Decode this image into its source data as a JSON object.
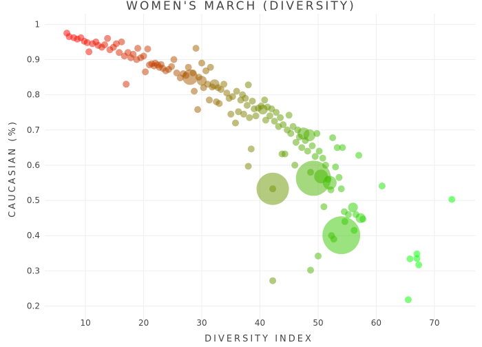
{
  "chart_data": {
    "type": "scatter",
    "title": "WOMEN'S MARCH (DIVERSITY)",
    "xlabel": "DIVERSITY INDEX",
    "ylabel": "CAUCASIAN (%)",
    "xlim": [
      3,
      77
    ],
    "ylim": [
      0.16,
      1.03
    ],
    "xticks": [
      10,
      20,
      30,
      40,
      50,
      60,
      70
    ],
    "yticks": [
      0.2,
      0.3,
      0.4,
      0.5,
      0.6,
      0.7,
      0.8,
      0.9,
      1
    ],
    "ytick_labels": [
      "0.2",
      "0.3",
      "0.4",
      "0.5",
      "0.6",
      "0.7",
      "0.8",
      "0.9",
      "1"
    ],
    "grid": true,
    "legend": "none",
    "color_scale": {
      "low": "#ff0000",
      "high": "#00ff00",
      "note": "marker color runs from red (low diversity) to green (high diversity)"
    },
    "size_note": "marker area is proportional to march size",
    "points": [
      {
        "x": 6.8,
        "y": 0.975,
        "s": 1
      },
      {
        "x": 7.2,
        "y": 0.965,
        "s": 1
      },
      {
        "x": 8.0,
        "y": 0.962,
        "s": 1
      },
      {
        "x": 8.6,
        "y": 0.958,
        "s": 1
      },
      {
        "x": 9.2,
        "y": 0.962,
        "s": 1
      },
      {
        "x": 9.8,
        "y": 0.952,
        "s": 1
      },
      {
        "x": 10.3,
        "y": 0.948,
        "s": 1
      },
      {
        "x": 10.6,
        "y": 0.922,
        "s": 1
      },
      {
        "x": 11.2,
        "y": 0.945,
        "s": 1
      },
      {
        "x": 11.8,
        "y": 0.95,
        "s": 1
      },
      {
        "x": 12.2,
        "y": 0.94,
        "s": 1
      },
      {
        "x": 12.8,
        "y": 0.935,
        "s": 1
      },
      {
        "x": 13.3,
        "y": 0.942,
        "s": 1
      },
      {
        "x": 13.8,
        "y": 0.96,
        "s": 1
      },
      {
        "x": 14.2,
        "y": 0.928,
        "s": 1
      },
      {
        "x": 14.8,
        "y": 0.935,
        "s": 1
      },
      {
        "x": 15.3,
        "y": 0.945,
        "s": 1
      },
      {
        "x": 15.8,
        "y": 0.92,
        "s": 1
      },
      {
        "x": 16.2,
        "y": 0.95,
        "s": 1
      },
      {
        "x": 16.7,
        "y": 0.91,
        "s": 1
      },
      {
        "x": 17.0,
        "y": 0.83,
        "s": 1
      },
      {
        "x": 17.3,
        "y": 0.92,
        "s": 1
      },
      {
        "x": 17.8,
        "y": 0.905,
        "s": 1
      },
      {
        "x": 18.2,
        "y": 0.915,
        "s": 1
      },
      {
        "x": 18.8,
        "y": 0.9,
        "s": 1
      },
      {
        "x": 19.0,
        "y": 0.932,
        "s": 1
      },
      {
        "x": 19.5,
        "y": 0.905,
        "s": 1
      },
      {
        "x": 20.0,
        "y": 0.91,
        "s": 1
      },
      {
        "x": 20.3,
        "y": 0.865,
        "s": 1
      },
      {
        "x": 20.7,
        "y": 0.93,
        "s": 1
      },
      {
        "x": 21.0,
        "y": 0.885,
        "s": 1
      },
      {
        "x": 21.4,
        "y": 0.888,
        "s": 1
      },
      {
        "x": 21.8,
        "y": 0.882,
        "s": 1
      },
      {
        "x": 22.0,
        "y": 0.89,
        "s": 1
      },
      {
        "x": 22.4,
        "y": 0.885,
        "s": 1
      },
      {
        "x": 22.7,
        "y": 0.878,
        "s": 1
      },
      {
        "x": 23.0,
        "y": 0.886,
        "s": 1
      },
      {
        "x": 23.3,
        "y": 0.875,
        "s": 1
      },
      {
        "x": 23.8,
        "y": 0.868,
        "s": 1
      },
      {
        "x": 24.3,
        "y": 0.872,
        "s": 1
      },
      {
        "x": 24.8,
        "y": 0.88,
        "s": 1
      },
      {
        "x": 25.2,
        "y": 0.9,
        "s": 1
      },
      {
        "x": 25.7,
        "y": 0.862,
        "s": 1
      },
      {
        "x": 26.3,
        "y": 0.848,
        "s": 1
      },
      {
        "x": 26.8,
        "y": 0.86,
        "s": 1
      },
      {
        "x": 27.3,
        "y": 0.855,
        "s": 1
      },
      {
        "x": 27.7,
        "y": 0.878,
        "s": 1
      },
      {
        "x": 28.0,
        "y": 0.85,
        "s": 5
      },
      {
        "x": 28.5,
        "y": 0.862,
        "s": 1
      },
      {
        "x": 28.7,
        "y": 0.81,
        "s": 1
      },
      {
        "x": 29.0,
        "y": 0.932,
        "s": 1
      },
      {
        "x": 29.3,
        "y": 0.758,
        "s": 1
      },
      {
        "x": 29.5,
        "y": 0.85,
        "s": 1
      },
      {
        "x": 30.0,
        "y": 0.84,
        "s": 2
      },
      {
        "x": 30.0,
        "y": 0.89,
        "s": 1
      },
      {
        "x": 30.3,
        "y": 0.82,
        "s": 1
      },
      {
        "x": 30.7,
        "y": 0.868,
        "s": 1
      },
      {
        "x": 31.0,
        "y": 0.83,
        "s": 1
      },
      {
        "x": 31.3,
        "y": 0.785,
        "s": 1
      },
      {
        "x": 31.5,
        "y": 0.878,
        "s": 1
      },
      {
        "x": 31.8,
        "y": 0.822,
        "s": 1
      },
      {
        "x": 32.2,
        "y": 0.83,
        "s": 2
      },
      {
        "x": 32.5,
        "y": 0.78,
        "s": 1
      },
      {
        "x": 32.8,
        "y": 0.82,
        "s": 1
      },
      {
        "x": 33.0,
        "y": 0.775,
        "s": 1
      },
      {
        "x": 33.3,
        "y": 0.815,
        "s": 1
      },
      {
        "x": 33.8,
        "y": 0.83,
        "s": 1
      },
      {
        "x": 34.3,
        "y": 0.805,
        "s": 1
      },
      {
        "x": 34.7,
        "y": 0.79,
        "s": 1
      },
      {
        "x": 35.0,
        "y": 0.745,
        "s": 1
      },
      {
        "x": 35.3,
        "y": 0.795,
        "s": 1
      },
      {
        "x": 35.8,
        "y": 0.72,
        "s": 1
      },
      {
        "x": 36.0,
        "y": 0.81,
        "s": 1
      },
      {
        "x": 36.3,
        "y": 0.752,
        "s": 1
      },
      {
        "x": 36.7,
        "y": 0.785,
        "s": 1
      },
      {
        "x": 37.0,
        "y": 0.8,
        "s": 1
      },
      {
        "x": 37.2,
        "y": 0.745,
        "s": 1
      },
      {
        "x": 37.5,
        "y": 0.79,
        "s": 1
      },
      {
        "x": 37.8,
        "y": 0.77,
        "s": 1
      },
      {
        "x": 38.0,
        "y": 0.828,
        "s": 1
      },
      {
        "x": 38.0,
        "y": 0.597,
        "s": 1
      },
      {
        "x": 38.2,
        "y": 0.735,
        "s": 1
      },
      {
        "x": 38.5,
        "y": 0.646,
        "s": 1
      },
      {
        "x": 38.7,
        "y": 0.782,
        "s": 1
      },
      {
        "x": 39.0,
        "y": 0.76,
        "s": 1
      },
      {
        "x": 39.3,
        "y": 0.74,
        "s": 1
      },
      {
        "x": 39.7,
        "y": 0.762,
        "s": 1
      },
      {
        "x": 40.2,
        "y": 0.768,
        "s": 1
      },
      {
        "x": 40.5,
        "y": 0.758,
        "s": 2
      },
      {
        "x": 40.8,
        "y": 0.785,
        "s": 1
      },
      {
        "x": 41.0,
        "y": 0.728,
        "s": 1
      },
      {
        "x": 41.3,
        "y": 0.765,
        "s": 1
      },
      {
        "x": 41.7,
        "y": 0.74,
        "s": 1
      },
      {
        "x": 42.0,
        "y": 0.76,
        "s": 1
      },
      {
        "x": 42.2,
        "y": 0.533,
        "s": 22
      },
      {
        "x": 42.2,
        "y": 0.533,
        "s": 1
      },
      {
        "x": 42.2,
        "y": 0.272,
        "s": 1
      },
      {
        "x": 42.5,
        "y": 0.725,
        "s": 1
      },
      {
        "x": 42.8,
        "y": 0.75,
        "s": 1
      },
      {
        "x": 43.2,
        "y": 0.71,
        "s": 1
      },
      {
        "x": 43.5,
        "y": 0.735,
        "s": 1
      },
      {
        "x": 43.8,
        "y": 0.632,
        "s": 1
      },
      {
        "x": 44.0,
        "y": 0.715,
        "s": 1
      },
      {
        "x": 44.3,
        "y": 0.632,
        "s": 1
      },
      {
        "x": 44.7,
        "y": 0.7,
        "s": 1
      },
      {
        "x": 45.0,
        "y": 0.742,
        "s": 1
      },
      {
        "x": 45.3,
        "y": 0.69,
        "s": 1
      },
      {
        "x": 45.7,
        "y": 0.71,
        "s": 1
      },
      {
        "x": 46.0,
        "y": 0.6,
        "s": 1
      },
      {
        "x": 46.2,
        "y": 0.665,
        "s": 1
      },
      {
        "x": 46.5,
        "y": 0.7,
        "s": 1
      },
      {
        "x": 46.8,
        "y": 0.68,
        "s": 1
      },
      {
        "x": 47.2,
        "y": 0.65,
        "s": 1
      },
      {
        "x": 47.5,
        "y": 0.69,
        "s": 3
      },
      {
        "x": 47.8,
        "y": 0.67,
        "s": 1
      },
      {
        "x": 48.2,
        "y": 0.64,
        "s": 1
      },
      {
        "x": 48.5,
        "y": 0.685,
        "s": 3
      },
      {
        "x": 48.7,
        "y": 0.302,
        "s": 1
      },
      {
        "x": 48.7,
        "y": 0.58,
        "s": 1
      },
      {
        "x": 49.0,
        "y": 0.655,
        "s": 1
      },
      {
        "x": 49.2,
        "y": 0.563,
        "s": 26
      },
      {
        "x": 49.5,
        "y": 0.625,
        "s": 1
      },
      {
        "x": 49.8,
        "y": 0.69,
        "s": 1
      },
      {
        "x": 50.0,
        "y": 0.342,
        "s": 1
      },
      {
        "x": 50.2,
        "y": 0.64,
        "s": 1
      },
      {
        "x": 50.5,
        "y": 0.568,
        "s": 4
      },
      {
        "x": 50.8,
        "y": 0.62,
        "s": 1
      },
      {
        "x": 51.0,
        "y": 0.482,
        "s": 1
      },
      {
        "x": 51.3,
        "y": 0.6,
        "s": 1
      },
      {
        "x": 51.7,
        "y": 0.56,
        "s": 1
      },
      {
        "x": 52.0,
        "y": 0.55,
        "s": 4
      },
      {
        "x": 52.2,
        "y": 0.53,
        "s": 1
      },
      {
        "x": 52.3,
        "y": 0.4,
        "s": 1
      },
      {
        "x": 52.5,
        "y": 0.678,
        "s": 1
      },
      {
        "x": 52.7,
        "y": 0.39,
        "s": 1
      },
      {
        "x": 53.0,
        "y": 0.595,
        "s": 1
      },
      {
        "x": 53.3,
        "y": 0.65,
        "s": 1
      },
      {
        "x": 53.6,
        "y": 0.565,
        "s": 1
      },
      {
        "x": 54.0,
        "y": 0.401,
        "s": 30
      },
      {
        "x": 54.0,
        "y": 0.533,
        "s": 1
      },
      {
        "x": 54.2,
        "y": 0.65,
        "s": 1
      },
      {
        "x": 54.5,
        "y": 0.468,
        "s": 1
      },
      {
        "x": 54.6,
        "y": 0.44,
        "s": 1
      },
      {
        "x": 55.2,
        "y": 0.46,
        "s": 1
      },
      {
        "x": 56.0,
        "y": 0.48,
        "s": 2
      },
      {
        "x": 56.2,
        "y": 0.415,
        "s": 1
      },
      {
        "x": 56.5,
        "y": 0.46,
        "s": 1
      },
      {
        "x": 57.0,
        "y": 0.628,
        "s": 1
      },
      {
        "x": 57.3,
        "y": 0.45,
        "s": 2
      },
      {
        "x": 57.7,
        "y": 0.447,
        "s": 1
      },
      {
        "x": 61.0,
        "y": 0.541,
        "s": 1
      },
      {
        "x": 65.5,
        "y": 0.218,
        "s": 1
      },
      {
        "x": 65.8,
        "y": 0.334,
        "s": 1
      },
      {
        "x": 67.0,
        "y": 0.348,
        "s": 1
      },
      {
        "x": 67.0,
        "y": 0.335,
        "s": 1
      },
      {
        "x": 67.3,
        "y": 0.317,
        "s": 1
      },
      {
        "x": 73.0,
        "y": 0.503,
        "s": 1
      }
    ]
  }
}
